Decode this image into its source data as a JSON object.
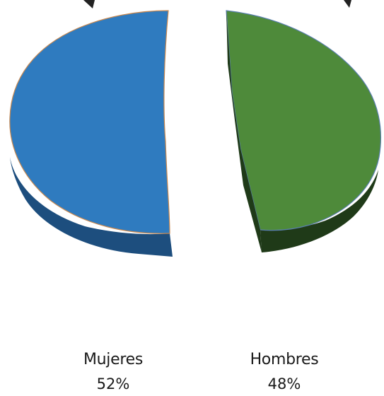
{
  "chart_data": {
    "type": "pie",
    "style": "exploded 3D half-disc pie",
    "categories": [
      "Mujeres",
      "Hombres"
    ],
    "values": [
      52,
      48
    ],
    "value_labels": [
      "52%",
      "48%"
    ],
    "colors": {
      "Mujeres": {
        "top": "#2f7bbf",
        "side": "#1d4e7e",
        "edge": "#c9884f"
      },
      "Hombres": {
        "top": "#4e8a3a",
        "side": "#1f3a18",
        "edge": "#5a7fae"
      }
    },
    "legend": "below, data labels under each slice"
  }
}
